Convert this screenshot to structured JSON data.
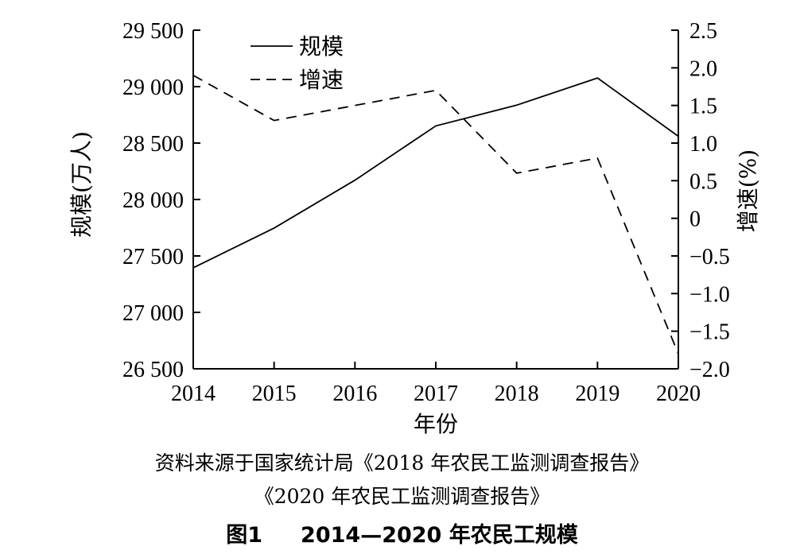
{
  "chart_data": {
    "type": "line",
    "categories": [
      "2014",
      "2015",
      "2016",
      "2017",
      "2018",
      "2019",
      "2020"
    ],
    "series": [
      {
        "name": "规模",
        "axis": "left",
        "style": "solid",
        "values": [
          27395,
          27747,
          28171,
          28652,
          28836,
          29077,
          28560
        ]
      },
      {
        "name": "增速",
        "axis": "right",
        "style": "dashed",
        "values": [
          1.9,
          1.3,
          1.5,
          1.7,
          0.6,
          0.8,
          -1.8
        ]
      }
    ],
    "xlabel": "年份",
    "ylabel_left": "规模(万人)",
    "ylabel_right": "增速(%)",
    "ylim_left": [
      26500,
      29500
    ],
    "ylim_right": [
      -2.0,
      2.5
    ],
    "yticks_left": [
      "26 500",
      "27 000",
      "27 500",
      "28 000",
      "28 500",
      "29 000",
      "29 500"
    ],
    "yticks_right": [
      "−2.0",
      "−1.5",
      "−1.0",
      "−0.5",
      "0",
      "0.5",
      "1.0",
      "1.5",
      "2.0",
      "2.5"
    ],
    "legend_position": "top-left",
    "grid": false
  },
  "source_line1": "资料来源于国家统计局《2018 年农民工监测调查报告》",
  "source_line2": "《2020 年农民工监测调查报告》",
  "figure_label": "图1",
  "figure_title": "2014—2020 年农民工规模"
}
